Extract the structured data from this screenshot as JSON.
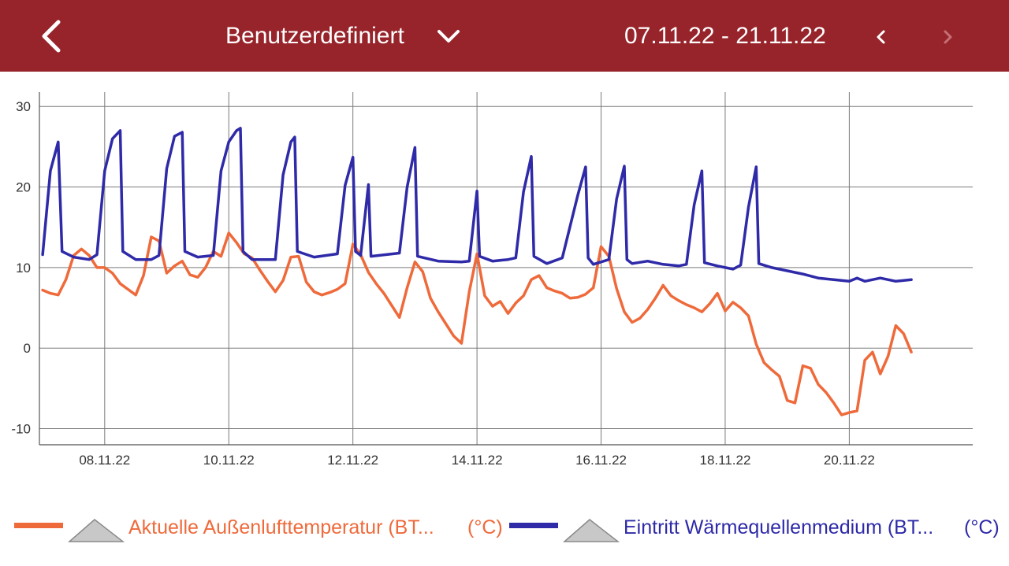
{
  "header": {
    "back_icon": "chevron-left-icon",
    "title": "Benutzerdefiniert",
    "dropdown_icon": "chevron-down-icon",
    "date_range": "07.11.22 - 21.11.22",
    "prev_icon": "chevron-left-icon",
    "next_icon": "chevron-right-icon",
    "bar_color": "#97242a"
  },
  "chart_data": {
    "type": "line",
    "x_axis_type": "date",
    "xlim": [
      "2022-11-06T22:45",
      "2022-11-21T23:45"
    ],
    "ylim": [
      -12,
      31
    ],
    "y_ticks": [
      30,
      20,
      10,
      0,
      -10
    ],
    "y_tick_labels": [
      "30",
      "20",
      "10",
      "0",
      "-10"
    ],
    "x_ticks": [
      "2022-11-08",
      "2022-11-10",
      "2022-11-12",
      "2022-11-14",
      "2022-11-16",
      "2022-11-18",
      "2022-11-20"
    ],
    "x_tick_labels": [
      "08.11.22",
      "10.11.22",
      "12.11.22",
      "14.11.22",
      "16.11.22",
      "18.11.22",
      "20.11.22"
    ],
    "grid": true,
    "legend_position": "bottom",
    "series": [
      {
        "name": "Aktuelle Außenlufttemperatur (BT...",
        "unit": "(°C)",
        "color": "#ef6a3b",
        "points": [
          [
            "2022-11-07T00:00",
            7.2
          ],
          [
            "2022-11-07T03:00",
            6.8
          ],
          [
            "2022-11-07T06:00",
            6.6
          ],
          [
            "2022-11-07T09:00",
            8.5
          ],
          [
            "2022-11-07T12:00",
            11.5
          ],
          [
            "2022-11-07T15:00",
            12.3
          ],
          [
            "2022-11-07T18:00",
            11.5
          ],
          [
            "2022-11-07T21:00",
            10.0
          ],
          [
            "2022-11-08T00:00",
            10.0
          ],
          [
            "2022-11-08T03:00",
            9.3
          ],
          [
            "2022-11-08T06:00",
            8.0
          ],
          [
            "2022-11-08T09:00",
            7.3
          ],
          [
            "2022-11-08T12:00",
            6.6
          ],
          [
            "2022-11-08T15:00",
            9.0
          ],
          [
            "2022-11-08T18:00",
            13.8
          ],
          [
            "2022-11-08T21:00",
            13.3
          ],
          [
            "2022-11-09T00:00",
            9.3
          ],
          [
            "2022-11-09T03:00",
            10.2
          ],
          [
            "2022-11-09T06:00",
            10.8
          ],
          [
            "2022-11-09T09:00",
            9.1
          ],
          [
            "2022-11-09T12:00",
            8.8
          ],
          [
            "2022-11-09T15:00",
            10.0
          ],
          [
            "2022-11-09T18:00",
            12.0
          ],
          [
            "2022-11-09T21:00",
            11.4
          ],
          [
            "2022-11-10T00:00",
            14.3
          ],
          [
            "2022-11-10T03:00",
            13.1
          ],
          [
            "2022-11-10T06:00",
            11.7
          ],
          [
            "2022-11-10T09:00",
            11.2
          ],
          [
            "2022-11-10T12:00",
            9.7
          ],
          [
            "2022-11-10T15:00",
            8.3
          ],
          [
            "2022-11-10T18:00",
            7.0
          ],
          [
            "2022-11-10T21:00",
            8.4
          ],
          [
            "2022-11-11T00:00",
            11.3
          ],
          [
            "2022-11-11T03:00",
            11.4
          ],
          [
            "2022-11-11T06:00",
            8.2
          ],
          [
            "2022-11-11T09:00",
            7.0
          ],
          [
            "2022-11-11T12:00",
            6.6
          ],
          [
            "2022-11-11T15:00",
            6.9
          ],
          [
            "2022-11-11T18:00",
            7.3
          ],
          [
            "2022-11-11T21:00",
            8.0
          ],
          [
            "2022-11-12T00:00",
            12.9
          ],
          [
            "2022-11-12T03:00",
            11.6
          ],
          [
            "2022-11-12T06:00",
            9.4
          ],
          [
            "2022-11-12T09:00",
            8.0
          ],
          [
            "2022-11-12T12:00",
            6.8
          ],
          [
            "2022-11-12T15:00",
            5.3
          ],
          [
            "2022-11-12T18:00",
            3.8
          ],
          [
            "2022-11-12T21:00",
            7.5
          ],
          [
            "2022-11-13T00:00",
            10.7
          ],
          [
            "2022-11-13T03:00",
            9.5
          ],
          [
            "2022-11-13T06:00",
            6.2
          ],
          [
            "2022-11-13T09:00",
            4.5
          ],
          [
            "2022-11-13T12:00",
            3.0
          ],
          [
            "2022-11-13T15:00",
            1.5
          ],
          [
            "2022-11-13T18:00",
            0.6
          ],
          [
            "2022-11-13T21:00",
            7.0
          ],
          [
            "2022-11-14T00:00",
            11.7
          ],
          [
            "2022-11-14T03:00",
            6.5
          ],
          [
            "2022-11-14T06:00",
            5.2
          ],
          [
            "2022-11-14T09:00",
            5.8
          ],
          [
            "2022-11-14T12:00",
            4.3
          ],
          [
            "2022-11-14T15:00",
            5.6
          ],
          [
            "2022-11-14T18:00",
            6.5
          ],
          [
            "2022-11-14T21:00",
            8.5
          ],
          [
            "2022-11-15T00:00",
            9.0
          ],
          [
            "2022-11-15T03:00",
            7.5
          ],
          [
            "2022-11-15T06:00",
            7.1
          ],
          [
            "2022-11-15T09:00",
            6.8
          ],
          [
            "2022-11-15T12:00",
            6.2
          ],
          [
            "2022-11-15T15:00",
            6.3
          ],
          [
            "2022-11-15T18:00",
            6.7
          ],
          [
            "2022-11-15T21:00",
            7.5
          ],
          [
            "2022-11-16T00:00",
            12.6
          ],
          [
            "2022-11-16T03:00",
            11.4
          ],
          [
            "2022-11-16T06:00",
            7.4
          ],
          [
            "2022-11-16T09:00",
            4.5
          ],
          [
            "2022-11-16T12:00",
            3.2
          ],
          [
            "2022-11-16T15:00",
            3.7
          ],
          [
            "2022-11-16T18:00",
            4.8
          ],
          [
            "2022-11-16T21:00",
            6.2
          ],
          [
            "2022-11-17T00:00",
            7.8
          ],
          [
            "2022-11-17T03:00",
            6.5
          ],
          [
            "2022-11-17T06:00",
            5.9
          ],
          [
            "2022-11-17T09:00",
            5.4
          ],
          [
            "2022-11-17T12:00",
            5.0
          ],
          [
            "2022-11-17T15:00",
            4.5
          ],
          [
            "2022-11-17T18:00",
            5.5
          ],
          [
            "2022-11-17T21:00",
            6.8
          ],
          [
            "2022-11-18T00:00",
            4.6
          ],
          [
            "2022-11-18T03:00",
            5.7
          ],
          [
            "2022-11-18T06:00",
            5.0
          ],
          [
            "2022-11-18T09:00",
            4.0
          ],
          [
            "2022-11-18T12:00",
            0.5
          ],
          [
            "2022-11-18T15:00",
            -1.8
          ],
          [
            "2022-11-18T18:00",
            -2.7
          ],
          [
            "2022-11-18T21:00",
            -3.5
          ],
          [
            "2022-11-19T00:00",
            -6.5
          ],
          [
            "2022-11-19T03:00",
            -6.8
          ],
          [
            "2022-11-19T06:00",
            -2.2
          ],
          [
            "2022-11-19T09:00",
            -2.5
          ],
          [
            "2022-11-19T12:00",
            -4.5
          ],
          [
            "2022-11-19T15:00",
            -5.5
          ],
          [
            "2022-11-19T18:00",
            -6.8
          ],
          [
            "2022-11-19T21:00",
            -8.3
          ],
          [
            "2022-11-20T00:00",
            -8.0
          ],
          [
            "2022-11-20T03:00",
            -7.8
          ],
          [
            "2022-11-20T06:00",
            -1.5
          ],
          [
            "2022-11-20T09:00",
            -0.5
          ],
          [
            "2022-11-20T12:00",
            -3.2
          ],
          [
            "2022-11-20T15:00",
            -1.0
          ],
          [
            "2022-11-20T18:00",
            2.8
          ],
          [
            "2022-11-20T21:00",
            1.8
          ],
          [
            "2022-11-21T00:00",
            -0.5
          ]
        ]
      },
      {
        "name": "Eintritt Wärmequellenmedium (BT...",
        "unit": "(°C)",
        "color": "#2e2aa8",
        "points": [
          [
            "2022-11-07T00:00",
            11.6
          ],
          [
            "2022-11-07T03:00",
            22.0
          ],
          [
            "2022-11-07T06:00",
            25.6
          ],
          [
            "2022-11-07T07:30",
            12.0
          ],
          [
            "2022-11-07T12:00",
            11.3
          ],
          [
            "2022-11-07T18:00",
            11.0
          ],
          [
            "2022-11-07T21:00",
            11.6
          ],
          [
            "2022-11-08T00:00",
            22.0
          ],
          [
            "2022-11-08T03:00",
            26.0
          ],
          [
            "2022-11-08T06:00",
            27.0
          ],
          [
            "2022-11-08T07:00",
            12.0
          ],
          [
            "2022-11-08T12:00",
            11.0
          ],
          [
            "2022-11-08T18:00",
            11.0
          ],
          [
            "2022-11-08T21:00",
            11.5
          ],
          [
            "2022-11-09T00:00",
            22.3
          ],
          [
            "2022-11-09T03:00",
            26.3
          ],
          [
            "2022-11-09T06:00",
            26.8
          ],
          [
            "2022-11-09T07:00",
            12.0
          ],
          [
            "2022-11-09T12:00",
            11.3
          ],
          [
            "2022-11-09T18:00",
            11.5
          ],
          [
            "2022-11-09T21:00",
            22.0
          ],
          [
            "2022-11-10T00:00",
            25.6
          ],
          [
            "2022-11-10T03:00",
            27.0
          ],
          [
            "2022-11-10T04:30",
            27.3
          ],
          [
            "2022-11-10T05:30",
            12.0
          ],
          [
            "2022-11-10T09:00",
            11.0
          ],
          [
            "2022-11-10T18:00",
            11.0
          ],
          [
            "2022-11-10T21:00",
            21.5
          ],
          [
            "2022-11-11T00:00",
            25.6
          ],
          [
            "2022-11-11T01:30",
            26.2
          ],
          [
            "2022-11-11T02:30",
            12.0
          ],
          [
            "2022-11-11T09:00",
            11.3
          ],
          [
            "2022-11-11T18:00",
            11.7
          ],
          [
            "2022-11-11T21:00",
            20.2
          ],
          [
            "2022-11-12T00:00",
            23.7
          ],
          [
            "2022-11-12T01:00",
            12.0
          ],
          [
            "2022-11-12T03:00",
            11.5
          ],
          [
            "2022-11-12T06:00",
            20.3
          ],
          [
            "2022-11-12T07:00",
            11.4
          ],
          [
            "2022-11-12T18:00",
            11.8
          ],
          [
            "2022-11-12T21:00",
            20.0
          ],
          [
            "2022-11-13T00:00",
            24.9
          ],
          [
            "2022-11-13T01:00",
            11.4
          ],
          [
            "2022-11-13T09:00",
            10.8
          ],
          [
            "2022-11-13T18:00",
            10.7
          ],
          [
            "2022-11-13T21:00",
            10.8
          ],
          [
            "2022-11-14T00:00",
            19.5
          ],
          [
            "2022-11-14T01:00",
            11.4
          ],
          [
            "2022-11-14T06:00",
            10.8
          ],
          [
            "2022-11-14T12:00",
            11.0
          ],
          [
            "2022-11-14T15:00",
            11.2
          ],
          [
            "2022-11-14T18:00",
            19.4
          ],
          [
            "2022-11-14T21:00",
            23.8
          ],
          [
            "2022-11-14T22:00",
            11.4
          ],
          [
            "2022-11-15T03:00",
            10.5
          ],
          [
            "2022-11-15T09:00",
            11.2
          ],
          [
            "2022-11-15T15:00",
            19.0
          ],
          [
            "2022-11-15T18:00",
            22.5
          ],
          [
            "2022-11-15T19:00",
            11.2
          ],
          [
            "2022-11-15T21:00",
            10.4
          ],
          [
            "2022-11-16T03:00",
            11.0
          ],
          [
            "2022-11-16T06:00",
            18.5
          ],
          [
            "2022-11-16T09:00",
            22.6
          ],
          [
            "2022-11-16T10:00",
            11.0
          ],
          [
            "2022-11-16T12:00",
            10.5
          ],
          [
            "2022-11-16T18:00",
            10.8
          ],
          [
            "2022-11-17T00:00",
            10.4
          ],
          [
            "2022-11-17T06:00",
            10.2
          ],
          [
            "2022-11-17T09:00",
            10.4
          ],
          [
            "2022-11-17T12:00",
            17.8
          ],
          [
            "2022-11-17T15:00",
            22.0
          ],
          [
            "2022-11-17T16:00",
            10.6
          ],
          [
            "2022-11-17T21:00",
            10.2
          ],
          [
            "2022-11-18T03:00",
            9.8
          ],
          [
            "2022-11-18T06:00",
            10.3
          ],
          [
            "2022-11-18T09:00",
            17.5
          ],
          [
            "2022-11-18T12:00",
            22.5
          ],
          [
            "2022-11-18T13:00",
            10.5
          ],
          [
            "2022-11-18T18:00",
            10.0
          ],
          [
            "2022-11-19T00:00",
            9.6
          ],
          [
            "2022-11-19T06:00",
            9.2
          ],
          [
            "2022-11-19T12:00",
            8.7
          ],
          [
            "2022-11-19T18:00",
            8.5
          ],
          [
            "2022-11-20T00:00",
            8.3
          ],
          [
            "2022-11-20T03:00",
            8.7
          ],
          [
            "2022-11-20T06:00",
            8.3
          ],
          [
            "2022-11-20T12:00",
            8.7
          ],
          [
            "2022-11-20T18:00",
            8.3
          ],
          [
            "2022-11-21T00:00",
            8.5
          ]
        ]
      }
    ]
  },
  "legend": {
    "items": [
      {
        "label": "Aktuelle Außenlufttemperatur (BT...",
        "unit": "(°C)",
        "color": "#ef6a3b",
        "icon": "area-toggle-icon"
      },
      {
        "label": "Eintritt Wärmequellenmedium (BT...",
        "unit": "(°C)",
        "color": "#2e2aa8",
        "icon": "area-toggle-icon"
      }
    ]
  }
}
